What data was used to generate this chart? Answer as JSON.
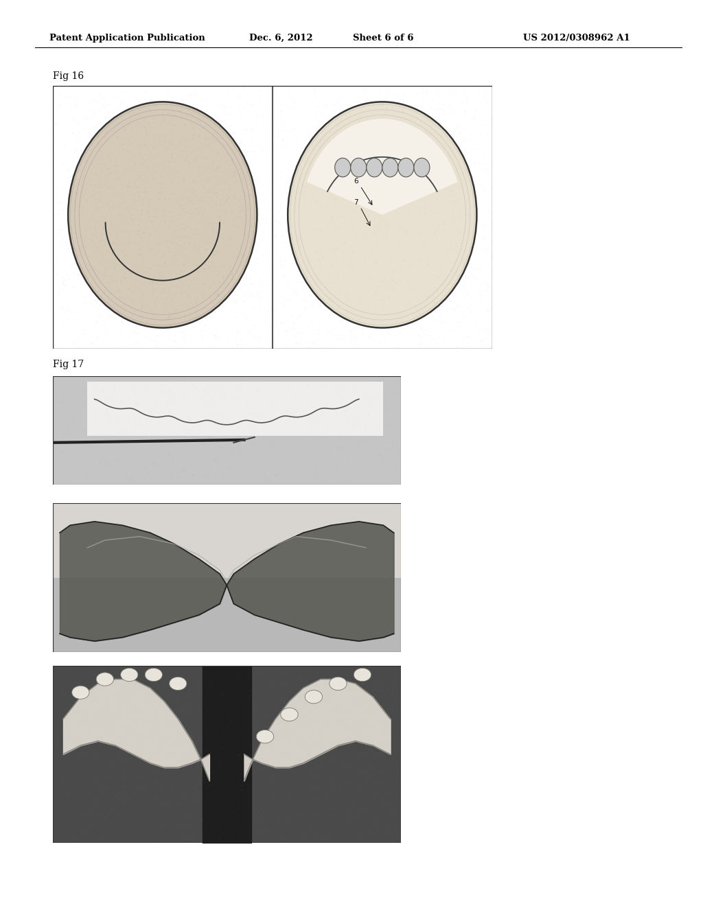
{
  "header_left": "Patent Application Publication",
  "header_mid_date": "Dec. 6, 2012",
  "header_mid_sheet": "Sheet 6 of 6",
  "header_right": "US 2012/0308962 A1",
  "fig16_label": "Fig 16",
  "fig17_label": "Fig 17",
  "bg_color": "#ffffff",
  "text_color": "#000000"
}
